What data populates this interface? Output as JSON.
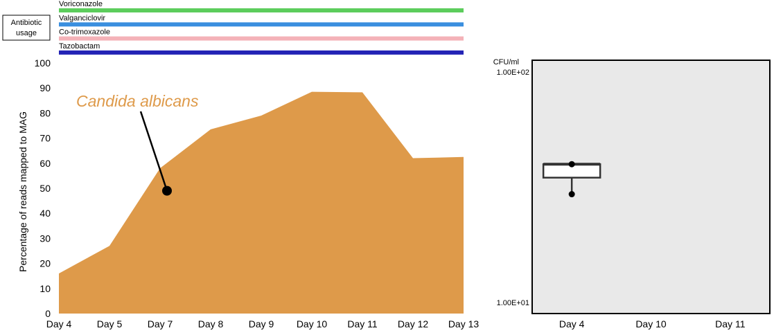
{
  "chart_data": [
    {
      "type": "area",
      "title": "",
      "xlabel": "",
      "ylabel": "Percentage of reads mapped to MAG",
      "categories": [
        "Day 4",
        "Day 5",
        "Day 7",
        "Day 8",
        "Day 9",
        "Day 10",
        "Day 11",
        "Day 12",
        "Day 13"
      ],
      "series": [
        {
          "name": "Candida albicans",
          "values": [
            16,
            27,
            58,
            73.5,
            79,
            88.5,
            88.3,
            62,
            62.5
          ]
        }
      ],
      "ylim": [
        0,
        100
      ],
      "yticks": [
        0,
        10,
        20,
        30,
        40,
        50,
        60,
        70,
        80,
        90,
        100
      ],
      "grid": false,
      "annotation": {
        "text": "Candida albicans",
        "category": "Day 7",
        "value": 49
      },
      "colors": {
        "area": "#de9a4a",
        "annotation_text": "#de9a4a"
      }
    },
    {
      "type": "boxplot",
      "title": "",
      "ylabel": "CFU/ml",
      "scale": "log",
      "categories": [
        "Day 4",
        "Day 10",
        "Day 11"
      ],
      "ylim": [
        10,
        100
      ],
      "ytick_labels": [
        "1.00E+01",
        "1.00E+02"
      ],
      "grid": false,
      "boxes": [
        {
          "category": "Day 4",
          "min": 29.5,
          "q1": 34.8,
          "median": 39.8,
          "q3": 39.8,
          "max": 39.8,
          "points": [
            39.8,
            29.5
          ]
        }
      ],
      "colors": {
        "panel_background": "#e9e9e9",
        "box_fill": "#ffffff"
      }
    }
  ],
  "antibiotic_usage": {
    "label": "Antibiotic usage",
    "drugs": [
      {
        "name": "Voriconazole",
        "color": "#5ccd5c"
      },
      {
        "name": "Valganciclovir",
        "color": "#3a8fdf"
      },
      {
        "name": "Co-trimoxazole",
        "color": "#f4b2b8"
      },
      {
        "name": "Tazobactam",
        "color": "#2323b5"
      }
    ]
  }
}
